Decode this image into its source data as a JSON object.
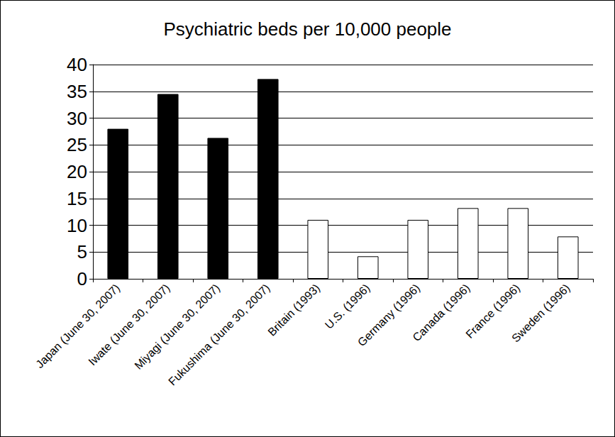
{
  "chart_data": {
    "type": "bar",
    "title": "Psychiatric beds per 10,000 people",
    "categories": [
      "Japan (June 30, 2007)",
      "Iwate (June 30, 2007)",
      "Miyagi (June 30, 2007)",
      "Fukushima (June 30, 2007)",
      "Britain (1993)",
      "U.S. (1996)",
      "Germany (1996)",
      "Canada (1996)",
      "France (1996)",
      "Sweden (1996)"
    ],
    "values": [
      28,
      34.5,
      26.3,
      37.3,
      11,
      4.2,
      11,
      13.2,
      13.2,
      7.9
    ],
    "colors": [
      "#000000",
      "#000000",
      "#000000",
      "#000000",
      "#ffffff",
      "#ffffff",
      "#ffffff",
      "#ffffff",
      "#ffffff",
      "#ffffff"
    ],
    "ylim": [
      0,
      40
    ],
    "yticks": [
      0,
      5,
      10,
      15,
      20,
      25,
      30,
      35,
      40
    ],
    "grid": true
  }
}
